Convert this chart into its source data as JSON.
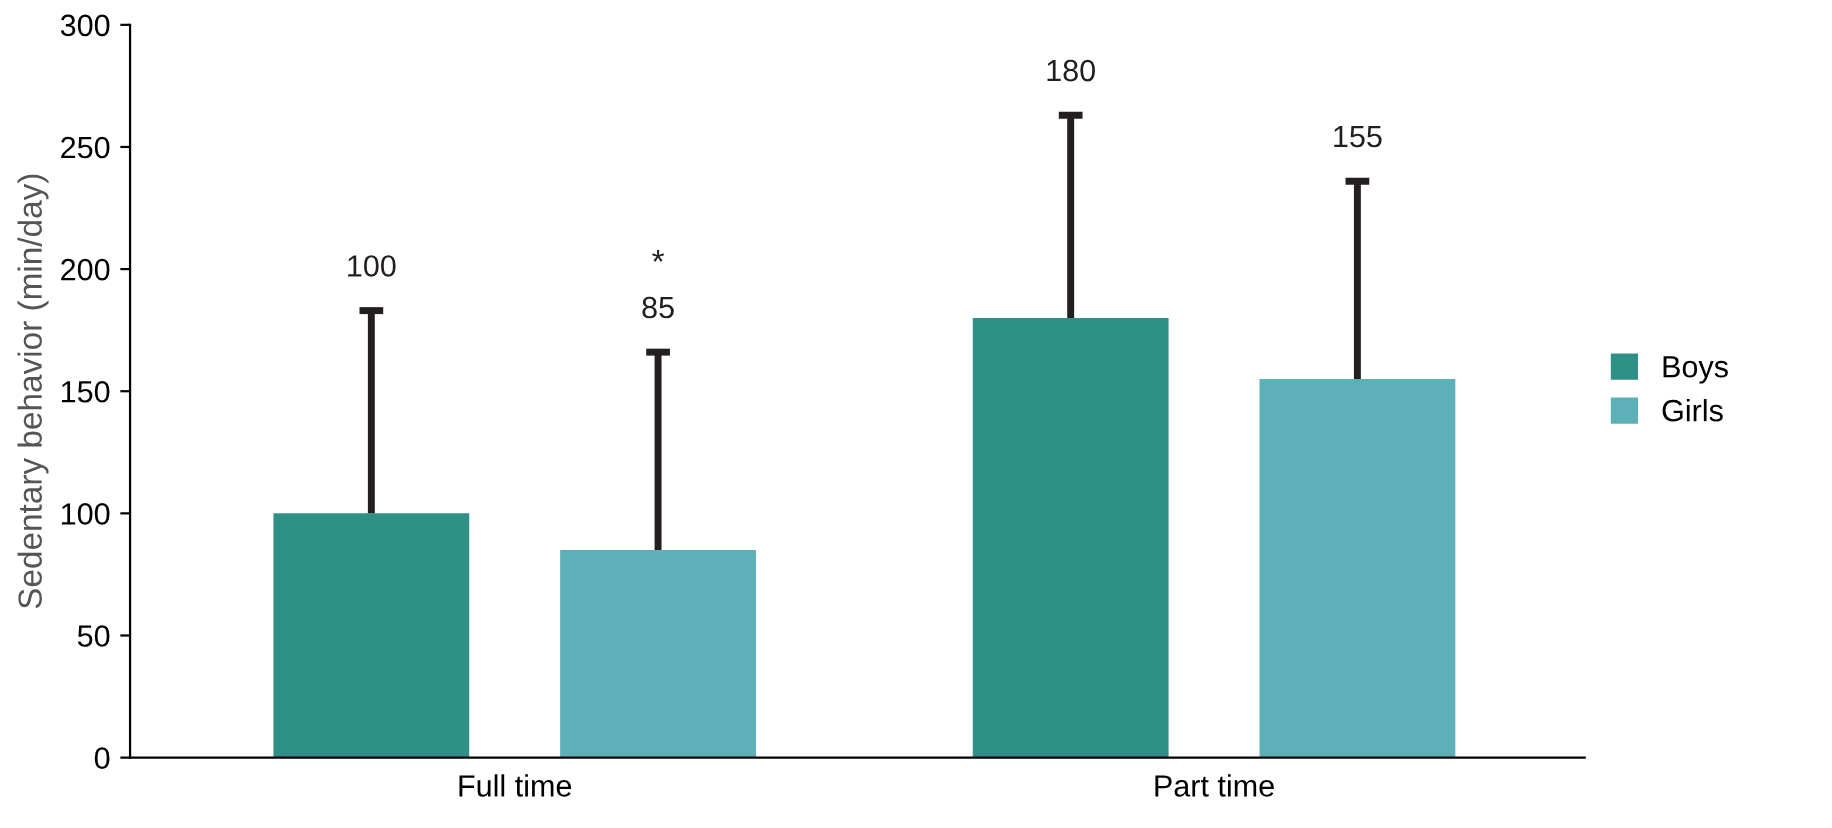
{
  "chart_data": {
    "type": "bar",
    "ylabel": "Sedentary behavior (min/day)",
    "categories": [
      "Full time",
      "Part time"
    ],
    "series": [
      {
        "name": "Boys",
        "color": "#2e9087",
        "values": [
          100,
          180
        ],
        "errors": [
          [
            100,
            183
          ],
          [
            180,
            263
          ]
        ]
      },
      {
        "name": "Girls",
        "color": "#5eb0b8",
        "values": [
          85,
          155
        ],
        "errors": [
          [
            85,
            166
          ],
          [
            155,
            236
          ]
        ]
      }
    ],
    "ylim": [
      0,
      300
    ],
    "yticks": [
      0,
      50,
      100,
      150,
      200,
      250,
      300
    ],
    "legend": "right",
    "grid": false,
    "annotations": [
      "100",
      "85",
      "180",
      "155",
      "*"
    ]
  }
}
